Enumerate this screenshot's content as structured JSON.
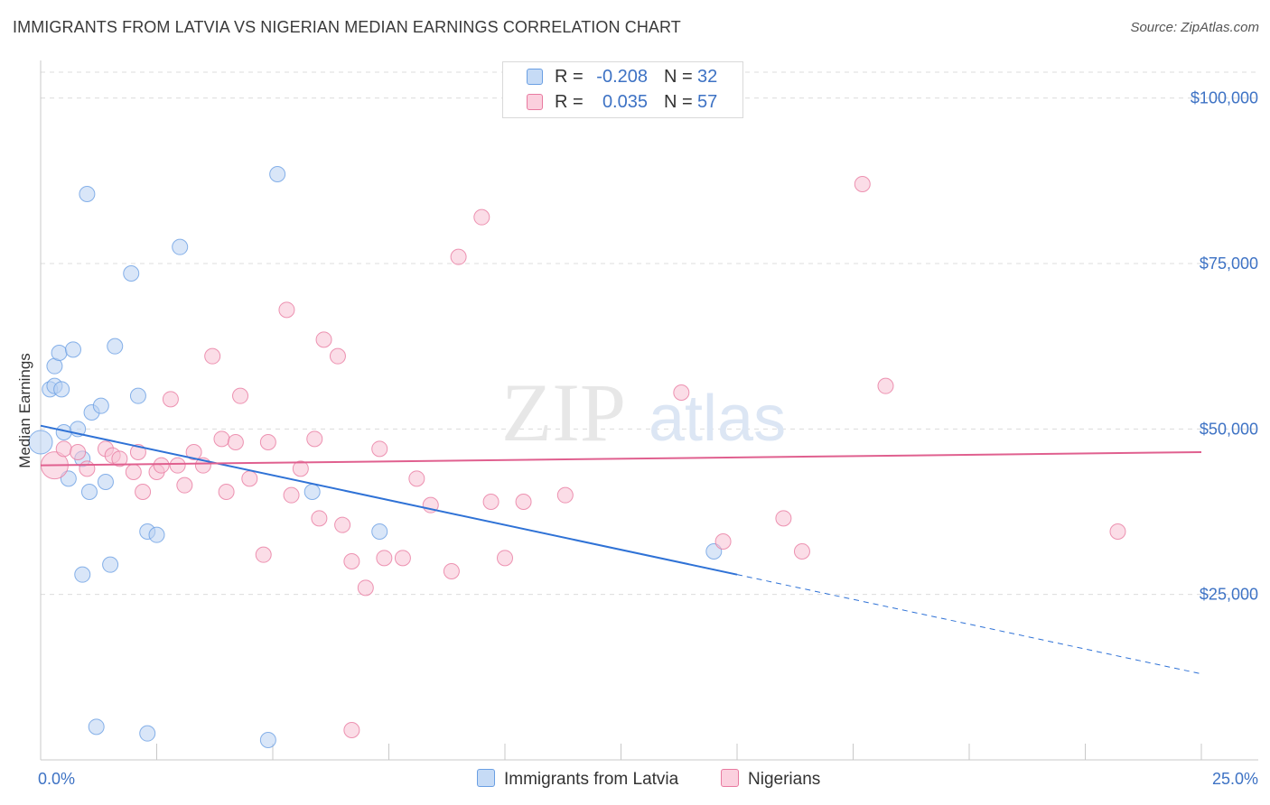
{
  "title": "IMMIGRANTS FROM LATVIA VS NIGERIAN MEDIAN EARNINGS CORRELATION CHART",
  "source": "Source: ZipAtlas.com",
  "watermark": {
    "zip": "ZIP",
    "atlas": "atlas"
  },
  "chart_data": {
    "type": "scatter",
    "ylabel": "Median Earnings",
    "xlim": [
      0,
      25
    ],
    "ylim": [
      0,
      105000
    ],
    "x_tick_labels": [
      "0.0%",
      "25.0%"
    ],
    "y_ticks": [
      {
        "value": 25000,
        "label": "$25,000"
      },
      {
        "value": 50000,
        "label": "$50,000"
      },
      {
        "value": 75000,
        "label": "$75,000"
      },
      {
        "value": 100000,
        "label": "$100,000"
      }
    ],
    "grid": true,
    "legend_placement": "bottom-center",
    "series": [
      {
        "name": "Immigrants from Latvia",
        "color": "#6a9fe3",
        "fill": "#b9d1f3",
        "R": "-0.208",
        "N": "32",
        "trend": {
          "x0": 0,
          "y0": 50500,
          "x1": 15,
          "y1": 28000,
          "x_end": 25,
          "y_end": 13000
        },
        "points": [
          [
            0.0,
            48000
          ],
          [
            0.2,
            56000
          ],
          [
            0.3,
            59500
          ],
          [
            0.3,
            56500
          ],
          [
            0.4,
            61500
          ],
          [
            0.45,
            56000
          ],
          [
            0.5,
            49500
          ],
          [
            0.6,
            42500
          ],
          [
            0.7,
            62000
          ],
          [
            0.8,
            50000
          ],
          [
            0.9,
            45500
          ],
          [
            0.9,
            28000
          ],
          [
            1.0,
            85500
          ],
          [
            1.05,
            40500
          ],
          [
            1.1,
            52500
          ],
          [
            1.2,
            5000
          ],
          [
            1.3,
            53500
          ],
          [
            1.4,
            42000
          ],
          [
            1.5,
            29500
          ],
          [
            1.6,
            62500
          ],
          [
            1.95,
            73500
          ],
          [
            2.1,
            55000
          ],
          [
            2.3,
            34500
          ],
          [
            2.3,
            4000
          ],
          [
            2.5,
            34000
          ],
          [
            3.0,
            77500
          ],
          [
            4.9,
            3000
          ],
          [
            5.1,
            88500
          ],
          [
            5.85,
            40500
          ],
          [
            7.3,
            34500
          ],
          [
            14.5,
            31500
          ]
        ]
      },
      {
        "name": "Nigerians",
        "color": "#e87aa0",
        "fill": "#f7c1d3",
        "R": "0.035",
        "N": "57",
        "trend": {
          "x0": 0,
          "y0": 44500,
          "x1": 25,
          "y1": 46500
        },
        "points": [
          [
            0.3,
            44500
          ],
          [
            0.5,
            47000
          ],
          [
            0.8,
            46500
          ],
          [
            1.0,
            44000
          ],
          [
            1.4,
            47000
          ],
          [
            1.55,
            46000
          ],
          [
            1.7,
            45500
          ],
          [
            2.0,
            43500
          ],
          [
            2.1,
            46500
          ],
          [
            2.2,
            40500
          ],
          [
            2.5,
            43500
          ],
          [
            2.6,
            44500
          ],
          [
            2.8,
            54500
          ],
          [
            2.95,
            44500
          ],
          [
            3.1,
            41500
          ],
          [
            3.3,
            46500
          ],
          [
            3.5,
            44500
          ],
          [
            3.7,
            61000
          ],
          [
            3.9,
            48500
          ],
          [
            4.0,
            40500
          ],
          [
            4.2,
            48000
          ],
          [
            4.3,
            55000
          ],
          [
            4.5,
            42500
          ],
          [
            4.8,
            31000
          ],
          [
            4.9,
            48000
          ],
          [
            5.3,
            68000
          ],
          [
            5.4,
            40000
          ],
          [
            5.6,
            44000
          ],
          [
            5.9,
            48500
          ],
          [
            6.0,
            36500
          ],
          [
            6.1,
            63500
          ],
          [
            6.4,
            61000
          ],
          [
            6.5,
            35500
          ],
          [
            6.7,
            30000
          ],
          [
            7.0,
            26000
          ],
          [
            7.3,
            47000
          ],
          [
            7.4,
            30500
          ],
          [
            7.8,
            30500
          ],
          [
            8.1,
            42500
          ],
          [
            8.4,
            38500
          ],
          [
            8.85,
            28500
          ],
          [
            9.0,
            76000
          ],
          [
            9.5,
            82000
          ],
          [
            9.7,
            39000
          ],
          [
            10.0,
            30500
          ],
          [
            10.4,
            39000
          ],
          [
            11.3,
            40000
          ],
          [
            13.8,
            55500
          ],
          [
            14.7,
            33000
          ],
          [
            16.0,
            36500
          ],
          [
            16.4,
            31500
          ],
          [
            17.7,
            87000
          ],
          [
            18.2,
            56500
          ],
          [
            23.2,
            34500
          ],
          [
            6.7,
            4500
          ]
        ]
      }
    ]
  }
}
